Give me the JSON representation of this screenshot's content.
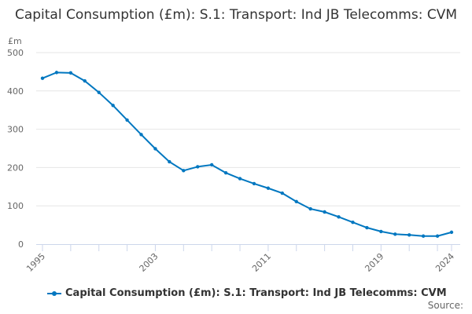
{
  "chart_data": {
    "type": "line",
    "title": "Capital Consumption (£m): S.1: Transport: Ind JB Telecomms: CVM",
    "ylabel": "£m",
    "xlabel": "",
    "ylim": [
      0,
      500
    ],
    "yticks": [
      0,
      100,
      200,
      300,
      400,
      500
    ],
    "xlim": [
      1995,
      2024
    ],
    "xtick_labels": [
      "1995",
      "2003",
      "2011",
      "2019",
      "2024"
    ],
    "grid": true,
    "legend_position": "bottom",
    "color": "#0077c0",
    "x": [
      1995,
      1996,
      1997,
      1998,
      1999,
      2000,
      2001,
      2002,
      2003,
      2004,
      2005,
      2006,
      2007,
      2008,
      2009,
      2010,
      2011,
      2012,
      2013,
      2014,
      2015,
      2016,
      2017,
      2018,
      2019,
      2020,
      2021,
      2022,
      2023,
      2024
    ],
    "series": [
      {
        "name": "Capital Consumption (£m): S.1: Transport: Ind JB Telecomms: CVM",
        "values": [
          433,
          448,
          447,
          426,
          396,
          362,
          324,
          286,
          249,
          215,
          192,
          202,
          207,
          186,
          171,
          158,
          146,
          133,
          111,
          92,
          84,
          71,
          57,
          43,
          33,
          26,
          24,
          21,
          21,
          31
        ]
      }
    ]
  },
  "source_label": "Source:"
}
